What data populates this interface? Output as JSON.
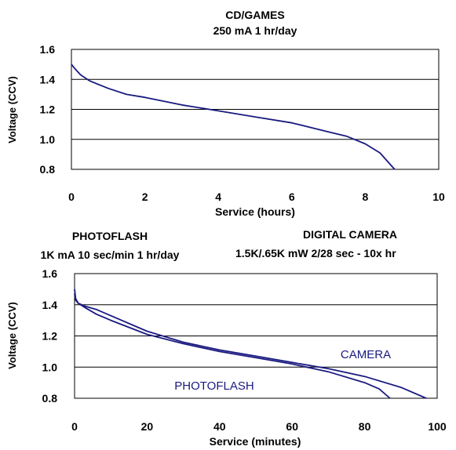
{
  "chart_data": [
    {
      "type": "line",
      "title": "CD/GAMES",
      "subtitle": "250 mA 1 hr/day",
      "xlabel": "Service (hours)",
      "ylabel": "Voltage (CCV)",
      "xlim": [
        0,
        10
      ],
      "ylim": [
        0.8,
        1.6
      ],
      "xticks": [
        "0",
        "2",
        "4",
        "6",
        "8",
        "10"
      ],
      "yticks": [
        "0.8",
        "1.0",
        "1.2",
        "1.4",
        "1.6"
      ],
      "grid": true,
      "line_color": "#1a1a80",
      "series": [
        {
          "x": [
            0,
            0.1,
            0.25,
            0.5,
            1.0,
            1.5,
            2.0,
            3.0,
            4.0,
            5.0,
            6.0,
            7.0,
            7.5,
            8.0,
            8.4,
            8.8
          ],
          "y": [
            1.5,
            1.47,
            1.43,
            1.39,
            1.34,
            1.3,
            1.28,
            1.23,
            1.19,
            1.15,
            1.11,
            1.05,
            1.02,
            0.97,
            0.91,
            0.8
          ]
        }
      ]
    },
    {
      "type": "line",
      "titles": [
        {
          "line1": "PHOTOFLASH",
          "line2": "1K mA 10 sec/min 1 hr/day"
        },
        {
          "line1": "DIGITAL CAMERA",
          "line2": "1.5K/.65K mW 2/28 sec - 10x hr"
        }
      ],
      "xlabel": "Service (minutes)",
      "ylabel": "Voltage (CCV)",
      "xlim": [
        0,
        100
      ],
      "ylim": [
        0.8,
        1.6
      ],
      "xticks": [
        "0",
        "20",
        "40",
        "60",
        "80",
        "100"
      ],
      "yticks": [
        "0.8",
        "1.0",
        "1.2",
        "1.4",
        "1.6"
      ],
      "grid": true,
      "line_color": "#1a1a80",
      "annotations": [
        "CAMERA",
        "PHOTOFLASH"
      ],
      "series": [
        {
          "name": "PHOTOFLASH",
          "x": [
            0,
            0.3,
            1,
            3,
            6,
            10,
            20,
            30,
            40,
            50,
            60,
            70,
            80,
            84,
            87
          ],
          "y": [
            1.5,
            1.44,
            1.41,
            1.38,
            1.34,
            1.3,
            1.21,
            1.15,
            1.1,
            1.06,
            1.02,
            0.97,
            0.9,
            0.86,
            0.8
          ]
        },
        {
          "name": "CAMERA",
          "x": [
            0,
            0.3,
            1,
            3,
            6,
            10,
            20,
            30,
            40,
            50,
            60,
            70,
            80,
            90,
            97
          ],
          "y": [
            1.47,
            1.43,
            1.41,
            1.39,
            1.37,
            1.33,
            1.23,
            1.16,
            1.11,
            1.07,
            1.03,
            0.99,
            0.94,
            0.87,
            0.8
          ]
        }
      ]
    }
  ]
}
